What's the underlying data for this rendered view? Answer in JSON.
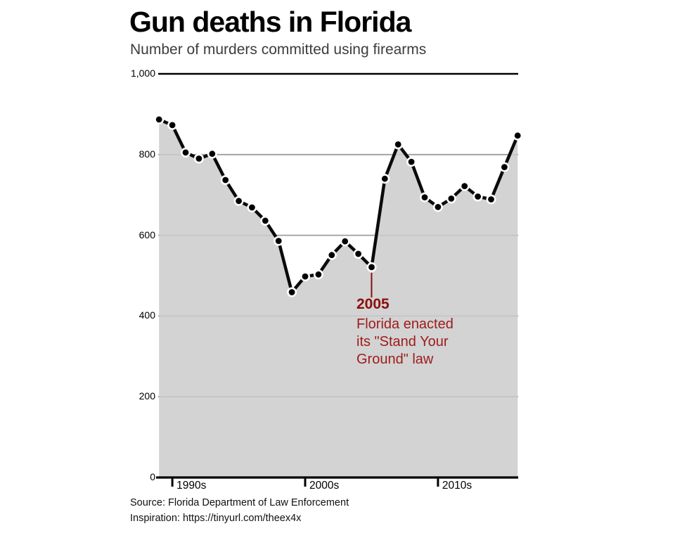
{
  "header": {
    "title": "Gun deaths in Florida",
    "subtitle": "Number of murders committed using firearms"
  },
  "annotation": {
    "year": "2005",
    "lines": [
      "Florida enacted",
      "its \"Stand Your",
      "Ground\" law"
    ]
  },
  "footer": {
    "source": "Source: Florida Department of Law Enforcement",
    "inspiration": "Inspiration: https://tinyurl.com/theex4x"
  },
  "colors": {
    "line": "#0a0a0a",
    "dot": "#000000",
    "dot_ring": "#ffffff",
    "area": "#cbcbcb",
    "grid": "#9e9e9e",
    "axis": "#000000",
    "top_rule": "#000000",
    "annotation_red": "#9e1b1b",
    "annotation_red_bold": "#8b0e0e"
  },
  "chart_data": {
    "type": "area",
    "title": "Gun deaths in Florida",
    "subtitle": "Number of murders committed using firearms",
    "xlabel": "",
    "ylabel": "",
    "x": [
      1989,
      1990,
      1991,
      1992,
      1993,
      1994,
      1995,
      1996,
      1997,
      1998,
      1999,
      2000,
      2001,
      2002,
      2003,
      2004,
      2005,
      2006,
      2007,
      2008,
      2009,
      2010,
      2011,
      2012,
      2013,
      2014,
      2015,
      2016
    ],
    "values": [
      887,
      873,
      805,
      790,
      802,
      737,
      685,
      669,
      636,
      586,
      459,
      498,
      503,
      551,
      585,
      554,
      521,
      740,
      825,
      782,
      694,
      670,
      691,
      722,
      696,
      689,
      769,
      847
    ],
    "ylim": [
      0,
      1000
    ],
    "xlim": [
      1989,
      2016
    ],
    "grid": true,
    "legend_position": "none",
    "y_ticks": [
      {
        "value": 0,
        "label": "0"
      },
      {
        "value": 200,
        "label": "200"
      },
      {
        "value": 400,
        "label": "400"
      },
      {
        "value": 600,
        "label": "600"
      },
      {
        "value": 800,
        "label": "800"
      },
      {
        "value": 1000,
        "label": "1,000"
      }
    ],
    "x_ticks": [
      {
        "value": 1990,
        "label": "1990s"
      },
      {
        "value": 2000,
        "label": "2000s"
      },
      {
        "value": 2010,
        "label": "2010s"
      }
    ],
    "annotated_point": {
      "year": 2005,
      "value": 521
    }
  }
}
